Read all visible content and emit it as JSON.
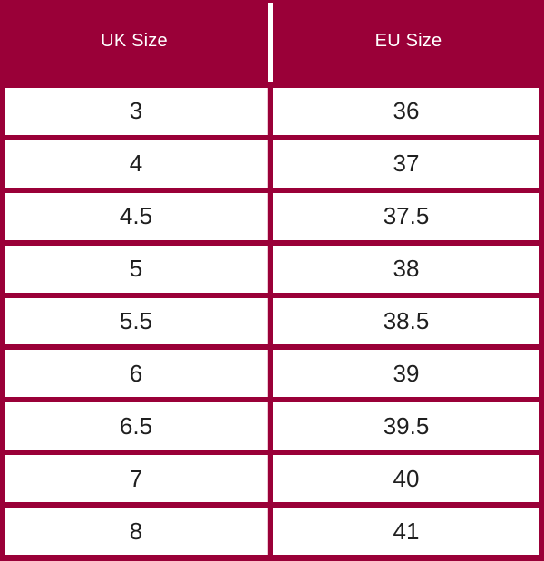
{
  "chart_data": {
    "type": "table",
    "columns": [
      "UK Size",
      "EU Size"
    ],
    "rows": [
      [
        "3",
        "36"
      ],
      [
        "4",
        "37"
      ],
      [
        "4.5",
        "37.5"
      ],
      [
        "5",
        "38"
      ],
      [
        "5.5",
        "38.5"
      ],
      [
        "6",
        "39"
      ],
      [
        "6.5",
        "39.5"
      ],
      [
        "7",
        "40"
      ],
      [
        "8",
        "41"
      ]
    ],
    "legend_position": "none",
    "grid": "on"
  },
  "colors": {
    "maroon": "#9A0038",
    "cell_bg": "#FFFFFF",
    "header_text": "#FFFFFF",
    "cell_text": "#1F1F1F",
    "divider_hairline": "#EDC9D5"
  }
}
